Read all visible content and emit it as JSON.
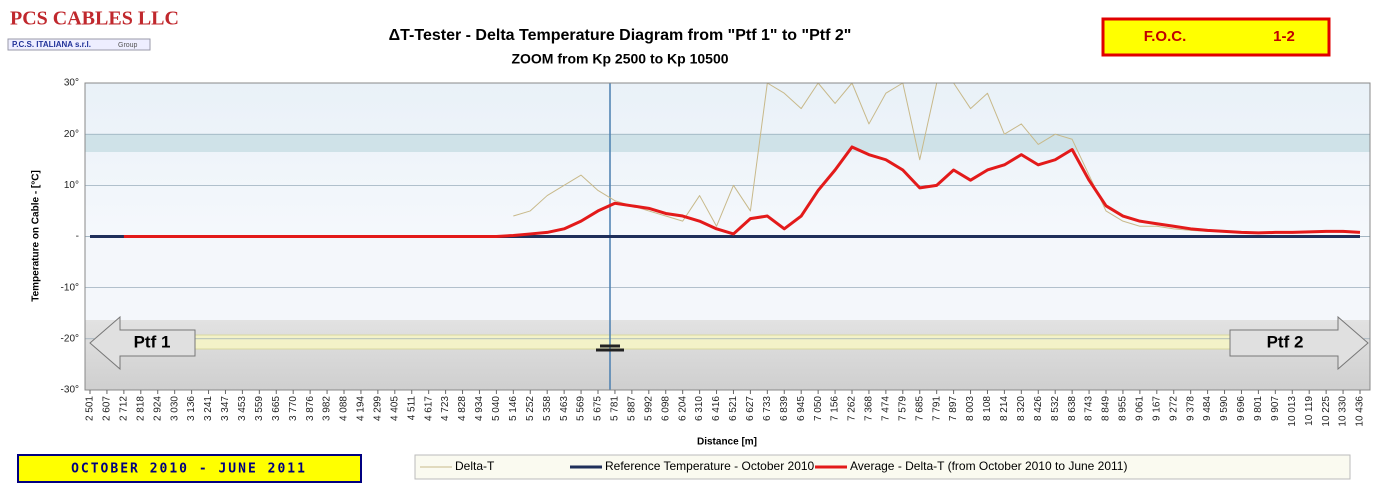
{
  "header": {
    "company": "PCS CABLES LLC",
    "company_sub": "P.C.S. ITALIANA s.r.l.",
    "group": "Group",
    "badge_left": "F.O.C.",
    "badge_right": "1-2",
    "period": "OCTOBER 2010 - JUNE 2011",
    "left_marker": "Ptf 1",
    "right_marker": "Ptf 2"
  },
  "chart_data": {
    "type": "line",
    "title": "ΔT-Tester  - Delta Temperature  Diagram  from  \"Ptf 1\"  to \"Ptf 2\"",
    "subtitle": "ZOOM  from Kp 2500 to Kp 10500",
    "y_label": "Temperature on Cable - [°C]",
    "x_label": "Distance [m]",
    "categories": [
      "2 501",
      "2 607",
      "2 712",
      "2 818",
      "2 924",
      "3 030",
      "3 136",
      "3 241",
      "3 347",
      "3 453",
      "3 559",
      "3 665",
      "3 770",
      "3 876",
      "3 982",
      "4 088",
      "4 194",
      "4 299",
      "4 405",
      "4 511",
      "4 617",
      "4 723",
      "4 828",
      "4 934",
      "5 040",
      "5 146",
      "5 252",
      "5 358",
      "5 463",
      "5 569",
      "5 675",
      "5 781",
      "5 887",
      "5 992",
      "6 098",
      "6 204",
      "6 310",
      "6 416",
      "6 521",
      "6 627",
      "6 733",
      "6 839",
      "6 945",
      "7 050",
      "7 156",
      "7 262",
      "7 368",
      "7 474",
      "7 579",
      "7 685",
      "7 791",
      "7 897",
      "8 003",
      "8 108",
      "8 214",
      "8 320",
      "8 426",
      "8 532",
      "8 638",
      "8 743",
      "8 849",
      "8 955",
      "9 061",
      "9 167",
      "9 272",
      "9 378",
      "9 484",
      "9 590",
      "9 696",
      "9 801",
      "9 907",
      "10 013",
      "10 119",
      "10 225",
      "10 330",
      "10 436"
    ],
    "series": [
      {
        "name": "Delta-T",
        "color": "#c8b98a",
        "width": 1,
        "values": [
          null,
          null,
          null,
          null,
          null,
          null,
          null,
          null,
          null,
          null,
          null,
          null,
          null,
          null,
          null,
          null,
          null,
          null,
          null,
          null,
          null,
          null,
          null,
          null,
          null,
          4,
          5,
          8,
          10,
          12,
          9,
          7,
          6,
          5,
          4,
          3,
          8,
          2,
          10,
          5,
          30,
          28,
          25,
          30,
          26,
          30,
          22,
          28,
          30,
          15,
          30,
          30,
          25,
          28,
          20,
          22,
          18,
          20,
          19,
          12,
          5,
          3,
          2,
          2,
          1.5,
          1.2,
          1,
          1,
          0.8,
          0.8,
          0.8,
          0.9,
          1,
          1,
          0.8,
          0.8
        ]
      },
      {
        "name": "Reference Temperature - October 2010",
        "color": "#1f2f5a",
        "width": 3,
        "values": [
          0,
          0,
          0,
          0,
          0,
          0,
          0,
          0,
          0,
          0,
          0,
          0,
          0,
          0,
          0,
          0,
          0,
          0,
          0,
          0,
          0,
          0,
          0,
          0,
          0,
          0,
          0,
          0,
          0,
          0,
          0,
          0,
          0,
          0,
          0,
          0,
          0,
          0,
          0,
          0,
          0,
          0,
          0,
          0,
          0,
          0,
          0,
          0,
          0,
          0,
          0,
          0,
          0,
          0,
          0,
          0,
          0,
          0,
          0,
          0,
          0,
          0,
          0,
          0,
          0,
          0,
          0,
          0,
          0,
          0,
          0,
          0,
          0,
          0,
          0,
          0
        ]
      },
      {
        "name": "Average - Delta-T  (from October 2010 to June 2011)",
        "color": "#e31a1a",
        "width": 3,
        "values": [
          null,
          null,
          0,
          0,
          0,
          0,
          0,
          0,
          0,
          0,
          0,
          0,
          0,
          0,
          0,
          0,
          0,
          0,
          0,
          0,
          0,
          0,
          0,
          0,
          0,
          0.2,
          0.5,
          0.8,
          1.5,
          3,
          5,
          6.5,
          6,
          5.5,
          4.5,
          4,
          3,
          1.5,
          0.5,
          3.5,
          4,
          1.5,
          4,
          9,
          13,
          17.5,
          16,
          15,
          13,
          9.5,
          10,
          13,
          11,
          13,
          14,
          16,
          14,
          15,
          17,
          11,
          6,
          4,
          3,
          2.5,
          2,
          1.5,
          1.2,
          1,
          0.8,
          0.7,
          0.8,
          0.8,
          0.9,
          1,
          1,
          0.8
        ]
      }
    ],
    "ylim": [
      -30,
      30
    ],
    "yticks": [
      {
        "value": 30,
        "label": "30°"
      },
      {
        "value": 20,
        "label": "20°"
      },
      {
        "value": 10,
        "label": "10°"
      },
      {
        "value": 0,
        "label": "-"
      },
      {
        "value": -10,
        "label": "-10°"
      },
      {
        "value": -20,
        "label": "-20°"
      },
      {
        "value": -30,
        "label": "-30°"
      }
    ],
    "grid": true
  }
}
